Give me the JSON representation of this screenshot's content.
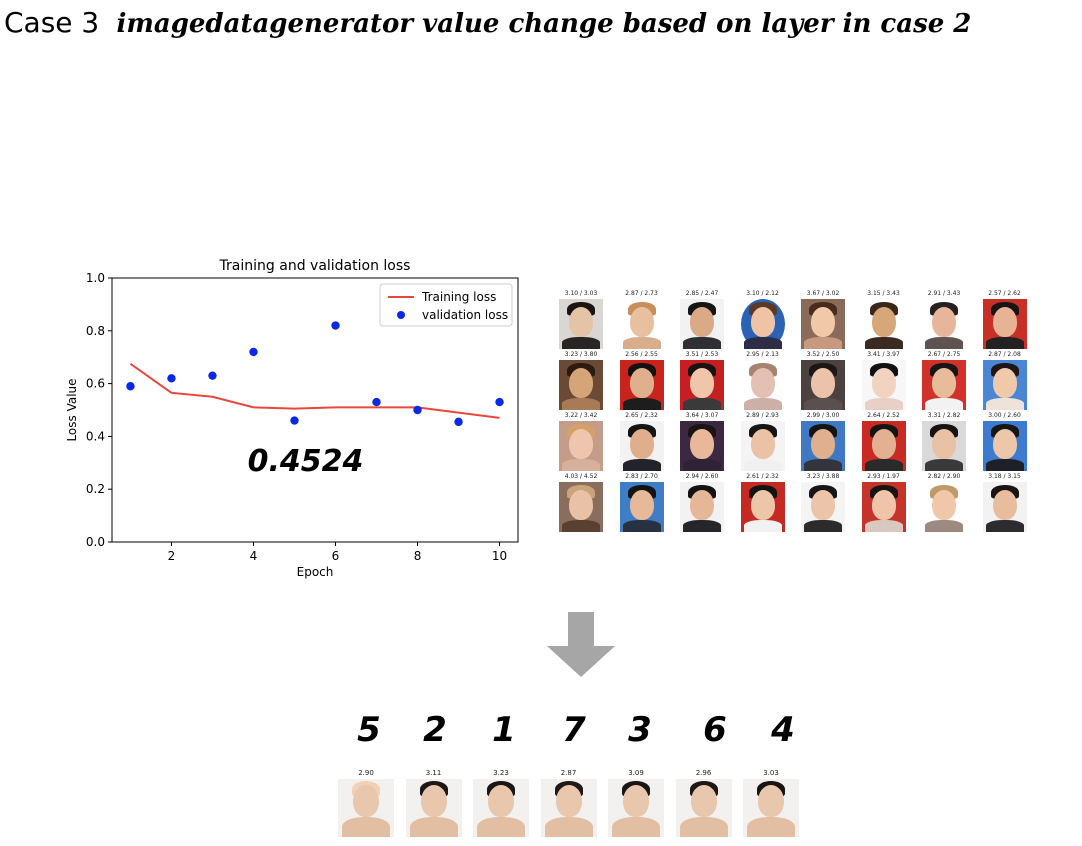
{
  "header": {
    "lead": "Case 3",
    "title": "imagedatagenerator value change based on layer in case 2"
  },
  "chart_data": {
    "type": "line",
    "title": "Training and validation loss",
    "xlabel": "Epoch",
    "ylabel": "Loss Value",
    "xlim": [
      0.55,
      10.45
    ],
    "ylim": [
      0.0,
      1.0
    ],
    "xticks": [
      2,
      4,
      6,
      8,
      10
    ],
    "yticks": [
      0.0,
      0.2,
      0.4,
      0.6,
      0.8,
      1.0
    ],
    "ytick_labels": [
      "0.0",
      "0.2",
      "0.4",
      "0.6",
      "0.8",
      "1.0"
    ],
    "legend_position": "top-right",
    "grid": false,
    "annotation": "0.4524",
    "series": [
      {
        "name": "Training loss",
        "kind": "line",
        "color": "#e8483b",
        "x": [
          1,
          2,
          3,
          4,
          5,
          6,
          7,
          8,
          9,
          10
        ],
        "y": [
          0.675,
          0.565,
          0.55,
          0.51,
          0.505,
          0.51,
          0.51,
          0.51,
          0.49,
          0.47
        ]
      },
      {
        "name": "validation loss",
        "kind": "scatter",
        "color": "#0a29e6",
        "x": [
          1,
          2,
          3,
          4,
          5,
          6,
          7,
          8,
          9,
          10
        ],
        "y": [
          0.59,
          0.62,
          0.63,
          0.72,
          0.46,
          0.82,
          0.53,
          0.5,
          0.455,
          0.53
        ]
      }
    ]
  },
  "face_grid": {
    "rows": [
      [
        {
          "score": "3.10 / 3.03",
          "bg": "#d9d7d3",
          "skin": "#e5c3a6",
          "hair": "#1a1414",
          "body": "#2a2525",
          "oval": false
        },
        {
          "score": "2.87 / 2.73",
          "bg": "#ffffff",
          "skin": "#e8c0a0",
          "hair": "#c98f5a",
          "body": "#d7ad8c",
          "oval": true
        },
        {
          "score": "2.85 / 2.47",
          "bg": "#f2f2f2",
          "skin": "#d9aa85",
          "hair": "#151515",
          "body": "#2f2f34",
          "oval": false
        },
        {
          "score": "3.10 / 2.12",
          "bg": "#2a62b5",
          "skin": "#f0c3a6",
          "hair": "#5a3a26",
          "body": "#2d2d48",
          "oval": true
        },
        {
          "score": "3.67 / 3.02",
          "bg": "#8a6a58",
          "skin": "#f1c9a8",
          "hair": "#4a2b1b",
          "body": "#c79a80",
          "oval": false
        },
        {
          "score": "3.15 / 3.43",
          "bg": "#ffffff",
          "skin": "#d7a77a",
          "hair": "#3b2719",
          "body": "#3b2a22",
          "oval": true
        },
        {
          "score": "2.91 / 3.43",
          "bg": "#ffffff",
          "skin": "#e7b59a",
          "hair": "#262020",
          "body": "#5e5350",
          "oval": true
        },
        {
          "score": "2.57 / 2.62",
          "bg": "#c63027",
          "skin": "#e6b394",
          "hair": "#1a1414",
          "body": "#222222",
          "oval": false
        }
      ],
      [
        {
          "score": "3.23 / 3.80",
          "bg": "#6a4a34",
          "skin": "#d6a479",
          "hair": "#2d1a10",
          "body": "#a87a56",
          "oval": false
        },
        {
          "score": "2.56 / 2.55",
          "bg": "#c9231b",
          "skin": "#e0af8e",
          "hair": "#121212",
          "body": "#1d1d1d",
          "oval": false
        },
        {
          "score": "3.51 / 2.53",
          "bg": "#c51f22",
          "skin": "#f0c6ab",
          "hair": "#181212",
          "body": "#3a3a3a",
          "oval": false
        },
        {
          "score": "2.95 / 2.13",
          "bg": "#ffffff",
          "skin": "#e3c0b3",
          "hair": "#a78371",
          "body": "#ccb0a8",
          "oval": true
        },
        {
          "score": "3.52 / 2.50",
          "bg": "#4a4140",
          "skin": "#eac3aa",
          "hair": "#1d1616",
          "body": "#5a5050",
          "oval": false
        },
        {
          "score": "3.41 / 3.97",
          "bg": "#f7f7f7",
          "skin": "#f2d3c2",
          "hair": "#111111",
          "body": "#e8d0c6",
          "oval": false
        },
        {
          "score": "2.67 / 2.75",
          "bg": "#d03129",
          "skin": "#e8bb9a",
          "hair": "#161616",
          "body": "#f2f2f2",
          "oval": false
        },
        {
          "score": "2.87 / 2.08",
          "bg": "#4b86d4",
          "skin": "#efc9aa",
          "hair": "#201616",
          "body": "#eee3d8",
          "oval": false
        }
      ],
      [
        {
          "score": "3.22 / 3.42",
          "bg": "#c49d8a",
          "skin": "#f0c5ad",
          "hair": "#d6a06a",
          "body": "#d7b09b",
          "oval": false
        },
        {
          "score": "2.65 / 2.32",
          "bg": "#f2f2f2",
          "skin": "#e0ae8c",
          "hair": "#141414",
          "body": "#23232b",
          "oval": false
        },
        {
          "score": "3.64 / 3.07",
          "bg": "#3c2940",
          "skin": "#e9b89b",
          "hair": "#1a1414",
          "body": "#2f2235",
          "oval": false
        },
        {
          "score": "2.89 / 2.93",
          "bg": "#f4f4f4",
          "skin": "#ecc2a6",
          "hair": "#161616",
          "body": "#f0f0f0",
          "oval": false
        },
        {
          "score": "2.99 / 3.00",
          "bg": "#3f79c4",
          "skin": "#e0b08e",
          "hair": "#141414",
          "body": "#34343c",
          "oval": false
        },
        {
          "score": "2.64 / 2.52",
          "bg": "#c82b23",
          "skin": "#e2b192",
          "hair": "#151515",
          "body": "#2a2a2a",
          "oval": false
        },
        {
          "score": "3.31 / 2.82",
          "bg": "#d9d9d9",
          "skin": "#e9c1a5",
          "hair": "#181313",
          "body": "#3a3a3a",
          "oval": false
        },
        {
          "score": "3.00 / 2.60",
          "bg": "#3d7bcf",
          "skin": "#edc7a9",
          "hair": "#161616",
          "body": "#1f1f28",
          "oval": false
        }
      ],
      [
        {
          "score": "4.03 / 4.52",
          "bg": "#8a6d5c",
          "skin": "#e8c1a6",
          "hair": "#c9a37a",
          "body": "#5a4030",
          "oval": false
        },
        {
          "score": "2.83 / 2.70",
          "bg": "#3f7dc6",
          "skin": "#e7b998",
          "hair": "#141414",
          "body": "#27313f",
          "oval": false
        },
        {
          "score": "2.94 / 2.60",
          "bg": "#f2f2f2",
          "skin": "#e5b797",
          "hair": "#131313",
          "body": "#25252a",
          "oval": false
        },
        {
          "score": "2.61 / 2.32",
          "bg": "#c42a22",
          "skin": "#edc6a9",
          "hair": "#141414",
          "body": "#f1f1f1",
          "oval": false
        },
        {
          "score": "3.23 / 3.88",
          "bg": "#f4f4f4",
          "skin": "#ecc4aa",
          "hair": "#161616",
          "body": "#2b2b2b",
          "oval": false
        },
        {
          "score": "2.93 / 1.97",
          "bg": "#c5342b",
          "skin": "#efc4a9",
          "hair": "#1a1313",
          "body": "#d8c8c0",
          "oval": false
        },
        {
          "score": "2.82 / 2.90",
          "bg": "#ffffff",
          "skin": "#f0c7a8",
          "hair": "#c29a6a",
          "body": "#9c8a80",
          "oval": true
        },
        {
          "score": "3.18 / 3.15",
          "bg": "#f2f2f2",
          "skin": "#e8bd9e",
          "hair": "#1b1414",
          "body": "#2b2b30",
          "oval": false
        }
      ]
    ]
  },
  "arrow": {
    "color": "#a6a6a6"
  },
  "ranking": {
    "ranks": [
      "5",
      "2",
      "1",
      "7",
      "3",
      "6",
      "4"
    ],
    "faces": [
      {
        "score": "2.90",
        "hair": "#f0d1b8"
      },
      {
        "score": "3.11",
        "hair": "#1d1818"
      },
      {
        "score": "3.23",
        "hair": "#1b1616"
      },
      {
        "score": "2.87",
        "hair": "#1f1a18"
      },
      {
        "score": "3.09",
        "hair": "#1a1616"
      },
      {
        "score": "2.96",
        "hair": "#1e1919"
      },
      {
        "score": "3.03",
        "hair": "#181414"
      }
    ]
  }
}
